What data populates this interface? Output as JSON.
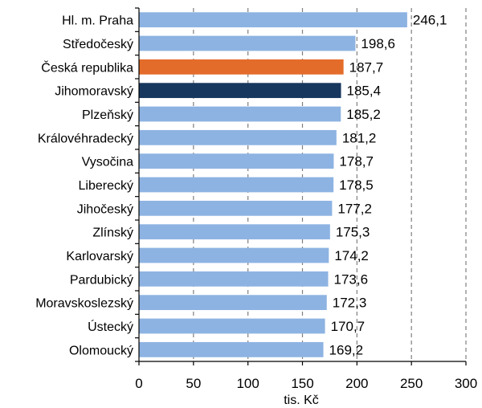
{
  "chart_data": {
    "type": "bar",
    "orientation": "horizontal",
    "categories": [
      "Hl. m. Praha",
      "Středočeský",
      "Česká republika",
      "Jihomoravský",
      "Plzeňský",
      "Královéhradecký",
      "Vysočina",
      "Liberecký",
      "Jihočeský",
      "Zlínský",
      "Karlovarský",
      "Pardubický",
      "Moravskoslezský",
      "Ústecký",
      "Olomoucký"
    ],
    "values": [
      246.1,
      198.6,
      187.7,
      185.4,
      185.2,
      181.2,
      178.7,
      178.5,
      177.2,
      175.3,
      174.2,
      173.6,
      172.3,
      170.7,
      169.2
    ],
    "value_labels": [
      "246,1",
      "198,6",
      "187,7",
      "185,4",
      "185,2",
      "181,2",
      "178,7",
      "178,5",
      "177,2",
      "175,3",
      "174,2",
      "173,6",
      "172,3",
      "170,7",
      "169,2"
    ],
    "xlabel": "tis. Kč",
    "xlim": [
      0,
      300
    ],
    "xticks": [
      0,
      50,
      100,
      150,
      200,
      250,
      300
    ],
    "grid": "vertical dashed",
    "colors": {
      "default": "#8db3e2",
      "Česká republika": "#e46c2a",
      "Jihomoravský": "#17375e",
      "grid": "#7f7f7f",
      "axis": "#000000"
    }
  }
}
